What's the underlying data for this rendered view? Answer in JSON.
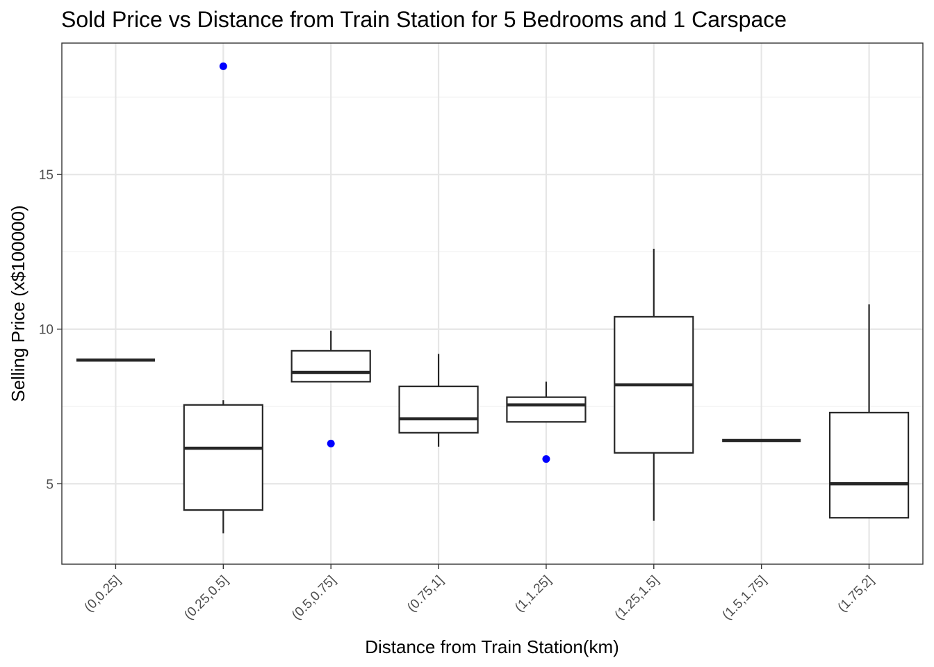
{
  "chart_data": {
    "type": "boxplot",
    "title": "Sold Price vs Distance from Train Station for 5 Bedrooms and 1 Carspace",
    "xlabel": "Distance from Train Station(km)",
    "ylabel": "Selling Price (x$100000)",
    "ylim": [
      2.4,
      19.25
    ],
    "yticks": [
      5,
      10,
      15
    ],
    "y_minor_ticks": [
      7.5,
      12.5,
      17.5
    ],
    "grid": true,
    "legend": "none",
    "colors": {
      "box_line": "#262626",
      "outlier": "#0000ff",
      "grid": "#e6e6e6"
    },
    "categories": [
      "(0,0.25]",
      "(0.25,0.5]",
      "(0.5,0.75]",
      "(0.75,1]",
      "(1,1.25]",
      "(1.25,1.5]",
      "(1.5,1.75]",
      "(1.75,2]"
    ],
    "boxes": [
      {
        "category": "(0,0.25]",
        "min": 9.0,
        "q1": 9.0,
        "median": 9.0,
        "q3": 9.0,
        "max": 9.0,
        "outliers": []
      },
      {
        "category": "(0.25,0.5]",
        "min": 3.4,
        "q1": 4.15,
        "median": 6.15,
        "q3": 7.55,
        "max": 7.7,
        "outliers": [
          18.5
        ]
      },
      {
        "category": "(0.5,0.75]",
        "min": 8.3,
        "q1": 8.3,
        "median": 8.6,
        "q3": 9.3,
        "max": 9.95,
        "outliers": [
          6.3
        ]
      },
      {
        "category": "(0.75,1]",
        "min": 6.2,
        "q1": 6.65,
        "median": 7.1,
        "q3": 8.15,
        "max": 9.2,
        "outliers": []
      },
      {
        "category": "(1,1.25]",
        "min": 7.0,
        "q1": 7.0,
        "median": 7.55,
        "q3": 7.8,
        "max": 8.3,
        "outliers": [
          5.8
        ]
      },
      {
        "category": "(1.25,1.5]",
        "min": 3.8,
        "q1": 6.0,
        "median": 8.2,
        "q3": 10.4,
        "max": 12.6,
        "outliers": []
      },
      {
        "category": "(1.5,1.75]",
        "min": 6.4,
        "q1": 6.4,
        "median": 6.4,
        "q3": 6.4,
        "max": 6.4,
        "outliers": []
      },
      {
        "category": "(1.75,2]",
        "min": 3.9,
        "q1": 3.9,
        "median": 5.0,
        "q3": 7.3,
        "max": 10.8,
        "outliers": []
      }
    ]
  }
}
